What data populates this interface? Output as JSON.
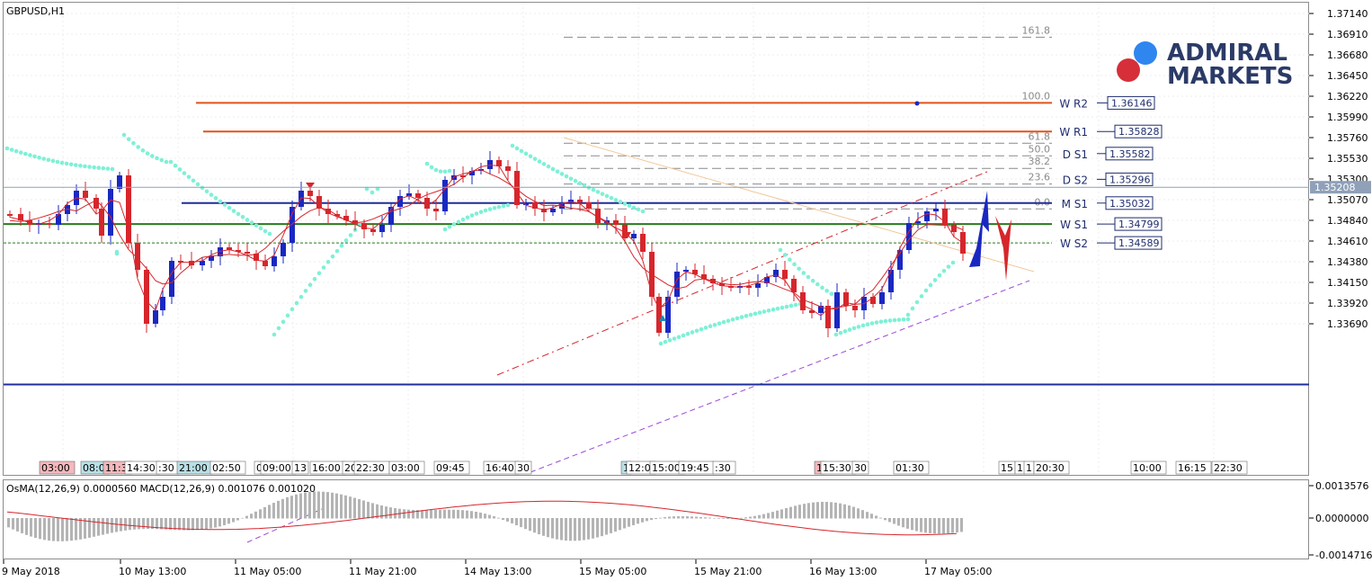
{
  "chart": {
    "symbol_label": "GBPUSD,H1",
    "current_price": "1.35208",
    "price_axis": [
      "1.37140",
      "1.36910",
      "1.36680",
      "1.36450",
      "1.36220",
      "1.35990",
      "1.35760",
      "1.35530",
      "1.35300",
      "1.35070",
      "1.34840",
      "1.34610",
      "1.34380",
      "1.34150",
      "1.33920",
      "1.33690"
    ],
    "levels": [
      {
        "label": "W R2",
        "value": "1.36146",
        "price": 1.36146,
        "color": "#e0531a",
        "start_x": 218
      },
      {
        "label": "W R1",
        "value": "1.35828",
        "price": 1.35828,
        "color": "#e0531a",
        "start_x": 226
      },
      {
        "label": "D S1",
        "value": "1.35582",
        "price": 1.35582,
        "color": "",
        "start_x": 0
      },
      {
        "label": "D S2",
        "value": "1.35296",
        "price": 1.35296,
        "color": "",
        "start_x": 0
      },
      {
        "label": "M S1",
        "value": "1.35032",
        "price": 1.35032,
        "color": "#1f2d9a",
        "start_x": 202
      },
      {
        "label": "W S1",
        "value": "1.34799",
        "price": 1.34799,
        "color": "#2a7a1e",
        "start_x": 4
      },
      {
        "label": "W S2",
        "value": "1.34589",
        "price": 1.34589,
        "color": "#2a7a1e",
        "start_x": 4
      }
    ],
    "fibo": [
      {
        "label": "161.8",
        "price": 1.36876
      },
      {
        "label": "100.0",
        "price": 1.36146
      },
      {
        "label": "61.8",
        "price": 1.35697
      },
      {
        "label": "50.0",
        "price": 1.35557
      },
      {
        "label": "38.2",
        "price": 1.35418
      },
      {
        "label": "23.6",
        "price": 1.35244
      },
      {
        "label": "0.0",
        "price": 1.34967
      }
    ],
    "session_labels": [
      {
        "text": "03:00",
        "x": 44,
        "bg": "#f4b8bc"
      },
      {
        "text": "08:0",
        "x": 90,
        "bg": "#b8e0e6"
      },
      {
        "text": "11:3",
        "x": 115,
        "bg": "#f4b8bc"
      },
      {
        "text": "14:30",
        "x": 139,
        "bg": "#ffffff"
      },
      {
        "text": ":30",
        "x": 174,
        "bg": "#ffffff"
      },
      {
        "text": "21:00",
        "x": 197,
        "bg": "#b8e0e6"
      },
      {
        "text": "02:50",
        "x": 234,
        "bg": "#ffffff"
      },
      {
        "text": "0",
        "x": 283,
        "bg": "#ffffff"
      },
      {
        "text": "09:00",
        "x": 290,
        "bg": "#ffffff"
      },
      {
        "text": "13",
        "x": 325,
        "bg": "#ffffff"
      },
      {
        "text": "16:00",
        "x": 345,
        "bg": "#ffffff"
      },
      {
        "text": "20",
        "x": 381,
        "bg": "#ffffff"
      },
      {
        "text": "22:30",
        "x": 394,
        "bg": "#ffffff"
      },
      {
        "text": "03:00",
        "x": 433,
        "bg": "#ffffff"
      },
      {
        "text": "09:45",
        "x": 483,
        "bg": "#ffffff"
      },
      {
        "text": "16:40",
        "x": 538,
        "bg": "#ffffff"
      },
      {
        "text": "30",
        "x": 573,
        "bg": "#ffffff"
      },
      {
        "text": "1",
        "x": 691,
        "bg": "#b8e0e6"
      },
      {
        "text": "12:0",
        "x": 697,
        "bg": "#ffffff"
      },
      {
        "text": "15:00",
        "x": 723,
        "bg": "#ffffff"
      },
      {
        "text": "19:45",
        "x": 755,
        "bg": "#ffffff"
      },
      {
        "text": ":30",
        "x": 793,
        "bg": "#ffffff"
      },
      {
        "text": "1",
        "x": 906,
        "bg": "#f4b8bc"
      },
      {
        "text": "15:30",
        "x": 913,
        "bg": "#ffffff"
      },
      {
        "text": "30",
        "x": 948,
        "bg": "#ffffff"
      },
      {
        "text": "01:30",
        "x": 994,
        "bg": "#ffffff"
      },
      {
        "text": "15",
        "x": 1111,
        "bg": "#ffffff"
      },
      {
        "text": "1",
        "x": 1129,
        "bg": "#ffffff"
      },
      {
        "text": "1",
        "x": 1139,
        "bg": "#ffffff"
      },
      {
        "text": "20:30",
        "x": 1150,
        "bg": "#ffffff"
      },
      {
        "text": "10:00",
        "x": 1258,
        "bg": "#ffffff"
      },
      {
        "text": "16:15",
        "x": 1308,
        "bg": "#ffffff"
      },
      {
        "text": "22:30",
        "x": 1348,
        "bg": "#ffffff"
      }
    ],
    "brand": {
      "line1": "ADMIRAL",
      "line2": "MARKETS",
      "color": "#2b3a67",
      "dot_blue": "#2f86ef",
      "dot_red": "#d62f3a"
    }
  },
  "indicator": {
    "label": "OsMA(12,26,9) 0.0000560 MACD(12,26,9) 0.001076 0.001020",
    "axis": [
      "0.0013576",
      "0.0000000",
      "-0.0014716"
    ]
  },
  "time_axis": [
    "9 May 2018",
    "10 May 13:00",
    "11 May 05:00",
    "11 May 21:00",
    "14 May 13:00",
    "15 May 05:00",
    "15 May 21:00",
    "16 May 13:00",
    "17 May 05:00"
  ],
  "colors": {
    "bull": "#1a28c2",
    "bear": "#d6262c",
    "sar": "#7ff0d6",
    "ema": "#d6262c",
    "grid": "#c8c8c8",
    "axis_text": "#000000"
  }
}
